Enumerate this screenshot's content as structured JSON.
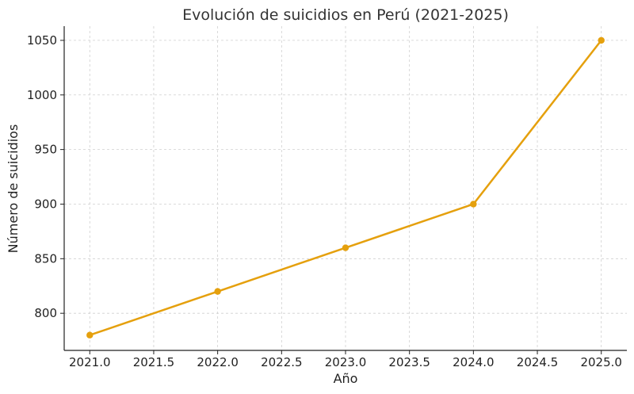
{
  "chart_data": {
    "type": "line",
    "title": "Evolución de suicidios en Perú (2021-2025)",
    "xlabel": "Año",
    "ylabel": "Número de suicidios",
    "x": [
      2021,
      2022,
      2023,
      2024,
      2025
    ],
    "series": [
      {
        "values": [
          780,
          820,
          860,
          900,
          1050
        ],
        "color": "#E5A00D",
        "marker": "circle"
      }
    ],
    "xlim": [
      2020.8,
      2025.2
    ],
    "ylim": [
      766,
      1063
    ],
    "xticks": [
      2021.0,
      2021.5,
      2022.0,
      2022.5,
      2023.0,
      2023.5,
      2024.0,
      2024.5,
      2025.0
    ],
    "xtick_labels": [
      "2021.0",
      "2021.5",
      "2022.0",
      "2022.5",
      "2023.0",
      "2023.5",
      "2024.0",
      "2024.5",
      "2025.0"
    ],
    "yticks": [
      800,
      850,
      900,
      950,
      1000,
      1050
    ],
    "ytick_labels": [
      "800",
      "850",
      "900",
      "950",
      "1000",
      "1050"
    ],
    "grid": true,
    "grid_style": "dashed",
    "legend": "none"
  }
}
